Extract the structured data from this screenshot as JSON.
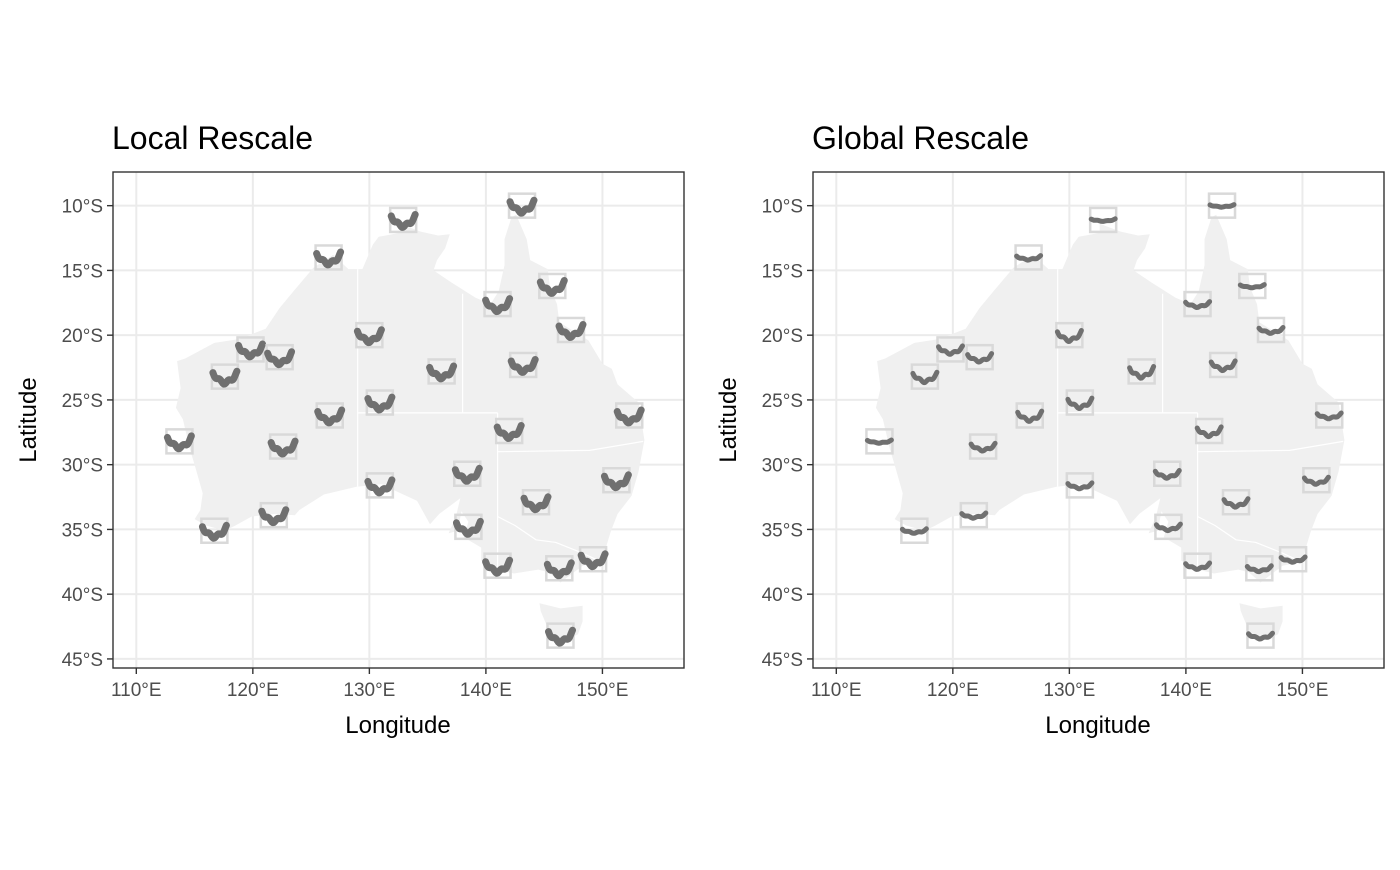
{
  "colors": {
    "land": "#f0f0f0",
    "grid": "#ebebeb",
    "panel_border": "#333333",
    "glyph": "#707070",
    "glyph_box": "#d9d9d9",
    "text": "#000000",
    "tick_text": "#4d4d4d"
  },
  "chart_data": [
    {
      "type": "map-glyph",
      "title": "Local Rescale",
      "xlabel": "Longitude",
      "ylabel": "Latitude",
      "xlim": [
        108,
        157
      ],
      "ylim": [
        -45.7,
        -7.4
      ],
      "x_ticks": [
        110,
        120,
        130,
        140,
        150
      ],
      "x_tick_labels": [
        "110°E",
        "120°E",
        "130°E",
        "140°E",
        "150°E"
      ],
      "y_ticks": [
        -10,
        -15,
        -20,
        -25,
        -30,
        -35,
        -40,
        -45
      ],
      "y_tick_labels": [
        "10°S",
        "15°S",
        "20°S",
        "25°S",
        "30°S",
        "35°S",
        "40°S",
        "45°S"
      ],
      "grid": true,
      "rescale": "local",
      "stations": [
        {
          "lon": 143.1,
          "lat": -10.0
        },
        {
          "lon": 132.9,
          "lat": -11.1
        },
        {
          "lon": 126.5,
          "lat": -14.0
        },
        {
          "lon": 145.7,
          "lat": -16.2
        },
        {
          "lon": 141.0,
          "lat": -17.6
        },
        {
          "lon": 147.3,
          "lat": -19.6
        },
        {
          "lon": 130.0,
          "lat": -20.0
        },
        {
          "lon": 119.8,
          "lat": -21.1
        },
        {
          "lon": 122.3,
          "lat": -21.7
        },
        {
          "lon": 143.2,
          "lat": -22.3
        },
        {
          "lon": 136.2,
          "lat": -22.8
        },
        {
          "lon": 117.6,
          "lat": -23.2
        },
        {
          "lon": 130.9,
          "lat": -25.2
        },
        {
          "lon": 126.6,
          "lat": -26.2
        },
        {
          "lon": 152.3,
          "lat": -26.2
        },
        {
          "lon": 142.0,
          "lat": -27.4
        },
        {
          "lon": 113.7,
          "lat": -28.2
        },
        {
          "lon": 122.6,
          "lat": -28.6
        },
        {
          "lon": 138.4,
          "lat": -30.7
        },
        {
          "lon": 151.2,
          "lat": -31.2
        },
        {
          "lon": 130.9,
          "lat": -31.6
        },
        {
          "lon": 144.3,
          "lat": -32.9
        },
        {
          "lon": 121.8,
          "lat": -33.9
        },
        {
          "lon": 138.5,
          "lat": -34.8
        },
        {
          "lon": 116.7,
          "lat": -35.1
        },
        {
          "lon": 149.2,
          "lat": -37.3
        },
        {
          "lon": 141.0,
          "lat": -37.8
        },
        {
          "lon": 146.3,
          "lat": -38.0
        },
        {
          "lon": 146.4,
          "lat": -43.2
        }
      ]
    },
    {
      "type": "map-glyph",
      "title": "Global Rescale",
      "xlabel": "Longitude",
      "ylabel": "Latitude",
      "xlim": [
        108,
        157
      ],
      "ylim": [
        -45.7,
        -7.4
      ],
      "x_ticks": [
        110,
        120,
        130,
        140,
        150
      ],
      "x_tick_labels": [
        "110°E",
        "120°E",
        "130°E",
        "140°E",
        "150°E"
      ],
      "y_ticks": [
        -10,
        -15,
        -20,
        -25,
        -30,
        -35,
        -40,
        -45
      ],
      "y_tick_labels": [
        "10°S",
        "15°S",
        "20°S",
        "25°S",
        "30°S",
        "35°S",
        "40°S",
        "45°S"
      ],
      "grid": true,
      "rescale": "global",
      "stations": [
        {
          "lon": 143.1,
          "lat": -10.0,
          "amp": 0.2
        },
        {
          "lon": 132.9,
          "lat": -11.1,
          "amp": 0.2
        },
        {
          "lon": 126.5,
          "lat": -14.0,
          "amp": 0.35
        },
        {
          "lon": 145.7,
          "lat": -16.2,
          "amp": 0.25
        },
        {
          "lon": 141.0,
          "lat": -17.6,
          "amp": 0.45
        },
        {
          "lon": 147.3,
          "lat": -19.6,
          "amp": 0.45
        },
        {
          "lon": 130.0,
          "lat": -20.0,
          "amp": 0.85
        },
        {
          "lon": 119.8,
          "lat": -21.1,
          "amp": 0.65
        },
        {
          "lon": 122.3,
          "lat": -21.7,
          "amp": 0.65
        },
        {
          "lon": 143.2,
          "lat": -22.3,
          "amp": 0.75
        },
        {
          "lon": 136.2,
          "lat": -22.8,
          "amp": 0.9
        },
        {
          "lon": 117.6,
          "lat": -23.2,
          "amp": 0.8
        },
        {
          "lon": 130.9,
          "lat": -25.2,
          "amp": 0.8
        },
        {
          "lon": 126.6,
          "lat": -26.2,
          "amp": 0.8
        },
        {
          "lon": 152.3,
          "lat": -26.2,
          "amp": 0.45
        },
        {
          "lon": 142.0,
          "lat": -27.4,
          "amp": 0.75
        },
        {
          "lon": 113.7,
          "lat": -28.2,
          "amp": 0.25
        },
        {
          "lon": 122.6,
          "lat": -28.6,
          "amp": 0.6
        },
        {
          "lon": 138.4,
          "lat": -30.7,
          "amp": 0.6
        },
        {
          "lon": 151.2,
          "lat": -31.2,
          "amp": 0.55
        },
        {
          "lon": 130.9,
          "lat": -31.6,
          "amp": 0.45
        },
        {
          "lon": 144.3,
          "lat": -32.9,
          "amp": 0.65
        },
        {
          "lon": 121.8,
          "lat": -33.9,
          "amp": 0.4
        },
        {
          "lon": 138.5,
          "lat": -34.8,
          "amp": 0.5
        },
        {
          "lon": 116.7,
          "lat": -35.1,
          "amp": 0.35
        },
        {
          "lon": 149.2,
          "lat": -37.3,
          "amp": 0.4
        },
        {
          "lon": 141.0,
          "lat": -37.8,
          "amp": 0.5
        },
        {
          "lon": 146.3,
          "lat": -38.0,
          "amp": 0.45
        },
        {
          "lon": 146.4,
          "lat": -43.2,
          "amp": 0.45
        }
      ]
    }
  ]
}
